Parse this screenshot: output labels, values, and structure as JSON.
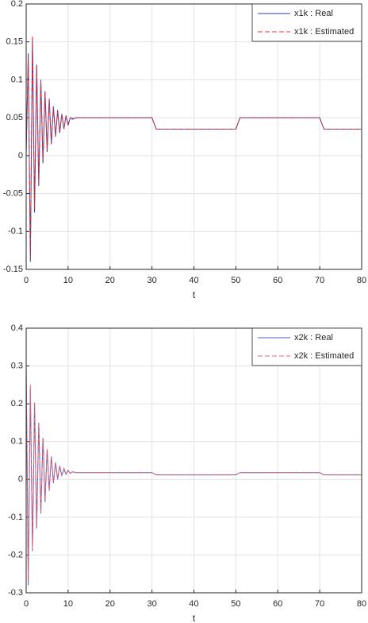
{
  "chart_data": [
    {
      "type": "line",
      "xlabel": "t",
      "x": [
        0,
        0.5,
        1,
        1.5,
        2,
        2.5,
        3,
        3.5,
        4,
        4.5,
        5,
        5.5,
        6,
        6.5,
        7,
        7.5,
        8,
        8.5,
        9,
        9.5,
        10,
        10.5,
        11,
        12,
        30,
        31,
        50,
        51,
        70,
        71,
        80
      ],
      "series": [
        {
          "name": "x1k : Real",
          "color": "#2b3fa8",
          "style": "solid",
          "values": [
            0,
            0.135,
            -0.14,
            0.155,
            -0.075,
            0.12,
            -0.04,
            0.1,
            -0.01,
            0.085,
            0.005,
            0.075,
            0.015,
            0.065,
            0.025,
            0.06,
            0.03,
            0.055,
            0.035,
            0.053,
            0.04,
            0.05,
            0.048,
            0.05,
            0.05,
            0.035,
            0.035,
            0.05,
            0.05,
            0.035,
            0.035
          ]
        },
        {
          "name": "x1k : Estimated",
          "color": "#e0303a",
          "style": "dashed",
          "values": [
            0.01,
            0.13,
            -0.135,
            0.158,
            -0.07,
            0.118,
            -0.035,
            0.098,
            -0.005,
            0.083,
            0.008,
            0.073,
            0.018,
            0.064,
            0.027,
            0.058,
            0.032,
            0.054,
            0.036,
            0.052,
            0.042,
            0.05,
            0.049,
            0.05,
            0.05,
            0.035,
            0.035,
            0.05,
            0.05,
            0.035,
            0.035
          ]
        }
      ],
      "xlim": [
        0,
        80
      ],
      "xticks": [
        0,
        10,
        20,
        30,
        40,
        50,
        60,
        70,
        80
      ],
      "ylim": [
        -0.15,
        0.2
      ],
      "yticks": [
        -0.15,
        -0.1,
        -0.05,
        0,
        0.05,
        0.1,
        0.15,
        0.2
      ],
      "grid": true,
      "legend": "upper-right"
    },
    {
      "type": "line",
      "xlabel": "t",
      "x": [
        0,
        0.5,
        1,
        1.5,
        2,
        2.5,
        3,
        3.5,
        4,
        4.5,
        5,
        5.5,
        6,
        6.5,
        7,
        7.5,
        8,
        8.5,
        9,
        9.5,
        10,
        10.5,
        11,
        12,
        30,
        31,
        50,
        51,
        70,
        71,
        80
      ],
      "series": [
        {
          "name": "x2k : Real",
          "color": "#4a5fc0",
          "style": "solid",
          "values": [
            0.3,
            -0.28,
            0.24,
            -0.19,
            0.2,
            -0.13,
            0.15,
            -0.09,
            0.11,
            -0.06,
            0.08,
            -0.03,
            0.06,
            -0.01,
            0.045,
            0,
            0.035,
            0.01,
            0.028,
            0.013,
            0.024,
            0.016,
            0.02,
            0.018,
            0.018,
            0.012,
            0.012,
            0.018,
            0.018,
            0.012,
            0.012
          ]
        },
        {
          "name": "x2k : Estimated",
          "color": "#e86070",
          "style": "dashed",
          "values": [
            0.31,
            -0.27,
            0.25,
            -0.185,
            0.205,
            -0.125,
            0.152,
            -0.085,
            0.112,
            -0.055,
            0.082,
            -0.028,
            0.061,
            -0.008,
            0.046,
            0.002,
            0.036,
            0.011,
            0.029,
            0.014,
            0.024,
            0.016,
            0.02,
            0.018,
            0.018,
            0.012,
            0.012,
            0.018,
            0.018,
            0.012,
            0.012
          ]
        }
      ],
      "xlim": [
        0,
        80
      ],
      "xticks": [
        0,
        10,
        20,
        30,
        40,
        50,
        60,
        70,
        80
      ],
      "ylim": [
        -0.3,
        0.4
      ],
      "yticks": [
        -0.3,
        -0.2,
        -0.1,
        0,
        0.1,
        0.2,
        0.3,
        0.4
      ],
      "grid": true,
      "legend": "upper-right"
    }
  ]
}
